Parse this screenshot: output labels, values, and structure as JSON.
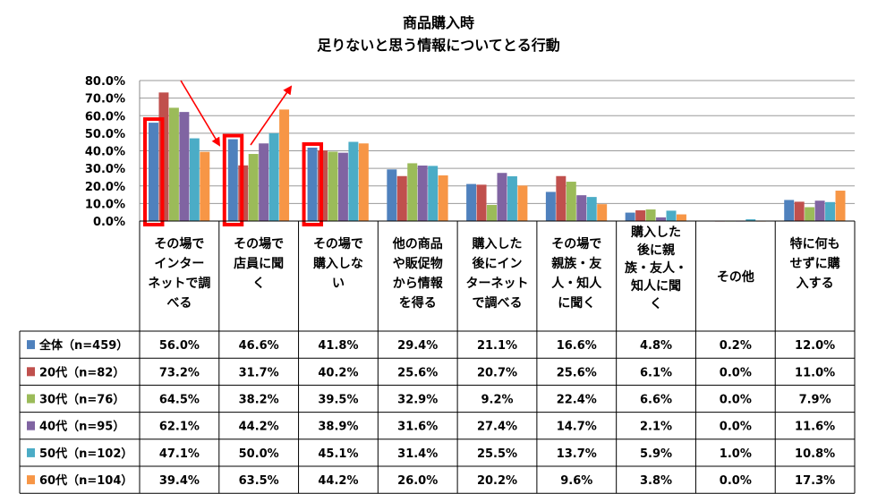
{
  "chart_data": {
    "type": "bar",
    "title_lines": [
      "商品購入時",
      "足りないと思う情報についてとる行動"
    ],
    "categories": [
      [
        "その場で",
        "インター",
        "ネットで調",
        "べる"
      ],
      [
        "その場で",
        "店員に聞",
        "く"
      ],
      [
        "その場で",
        "購入しな",
        "い"
      ],
      [
        "他の商品",
        "や販促物",
        "から情報",
        "を得る"
      ],
      [
        "購入した",
        "後にイン",
        "ターネット",
        "で調べる"
      ],
      [
        "その場で",
        "親族・友",
        "人・知人",
        "に聞く"
      ],
      [
        "購入した",
        "後に親",
        "族・友人・",
        "知人に聞",
        "く"
      ],
      [
        "その他"
      ],
      [
        "特に何も",
        "せずに購",
        "入する"
      ]
    ],
    "ylim": [
      0,
      80
    ],
    "yticks": [
      "0.0%",
      "10.0%",
      "20.0%",
      "30.0%",
      "40.0%",
      "50.0%",
      "60.0%",
      "70.0%",
      "80.0%"
    ],
    "grid": true,
    "series": [
      {
        "name": "全体（n=459）",
        "color": "#4f81bd",
        "values": [
          56.0,
          46.6,
          41.8,
          29.4,
          21.1,
          16.6,
          4.8,
          0.2,
          12.0
        ],
        "labels": [
          "56.0%",
          "46.6%",
          "41.8%",
          "29.4%",
          "21.1%",
          "16.6%",
          "4.8%",
          "0.2%",
          "12.0%"
        ]
      },
      {
        "name": "20代（n=82）",
        "color": "#c0504d",
        "values": [
          73.2,
          31.7,
          40.2,
          25.6,
          20.7,
          25.6,
          6.1,
          0.0,
          11.0
        ],
        "labels": [
          "73.2%",
          "31.7%",
          "40.2%",
          "25.6%",
          "20.7%",
          "25.6%",
          "6.1%",
          "0.0%",
          "11.0%"
        ]
      },
      {
        "name": "30代（n=76）",
        "color": "#9bbb59",
        "values": [
          64.5,
          38.2,
          39.5,
          32.9,
          9.2,
          22.4,
          6.6,
          0.0,
          7.9
        ],
        "labels": [
          "64.5%",
          "38.2%",
          "39.5%",
          "32.9%",
          "9.2%",
          "22.4%",
          "6.6%",
          "0.0%",
          "7.9%"
        ]
      },
      {
        "name": "40代（n=95）",
        "color": "#8064a2",
        "values": [
          62.1,
          44.2,
          38.9,
          31.6,
          27.4,
          14.7,
          2.1,
          0.0,
          11.6
        ],
        "labels": [
          "62.1%",
          "44.2%",
          "38.9%",
          "31.6%",
          "27.4%",
          "14.7%",
          "2.1%",
          "0.0%",
          "11.6%"
        ]
      },
      {
        "name": "50代（n=102）",
        "color": "#4bacc6",
        "values": [
          47.1,
          50.0,
          45.1,
          31.4,
          25.5,
          13.7,
          5.9,
          1.0,
          10.8
        ],
        "labels": [
          "47.1%",
          "50.0%",
          "45.1%",
          "31.4%",
          "25.5%",
          "13.7%",
          "5.9%",
          "1.0%",
          "10.8%"
        ]
      },
      {
        "name": "60代（n=104）",
        "color": "#f79646",
        "values": [
          39.4,
          63.5,
          44.2,
          26.0,
          20.2,
          9.6,
          3.8,
          0.0,
          17.3
        ],
        "labels": [
          "39.4%",
          "63.5%",
          "44.2%",
          "26.0%",
          "20.2%",
          "9.6%",
          "3.8%",
          "0.0%",
          "17.3%"
        ]
      }
    ],
    "highlighted_categories": [
      0,
      1,
      2
    ],
    "highlight_color": "#ff0000",
    "arrow_color": "#ff0000"
  }
}
